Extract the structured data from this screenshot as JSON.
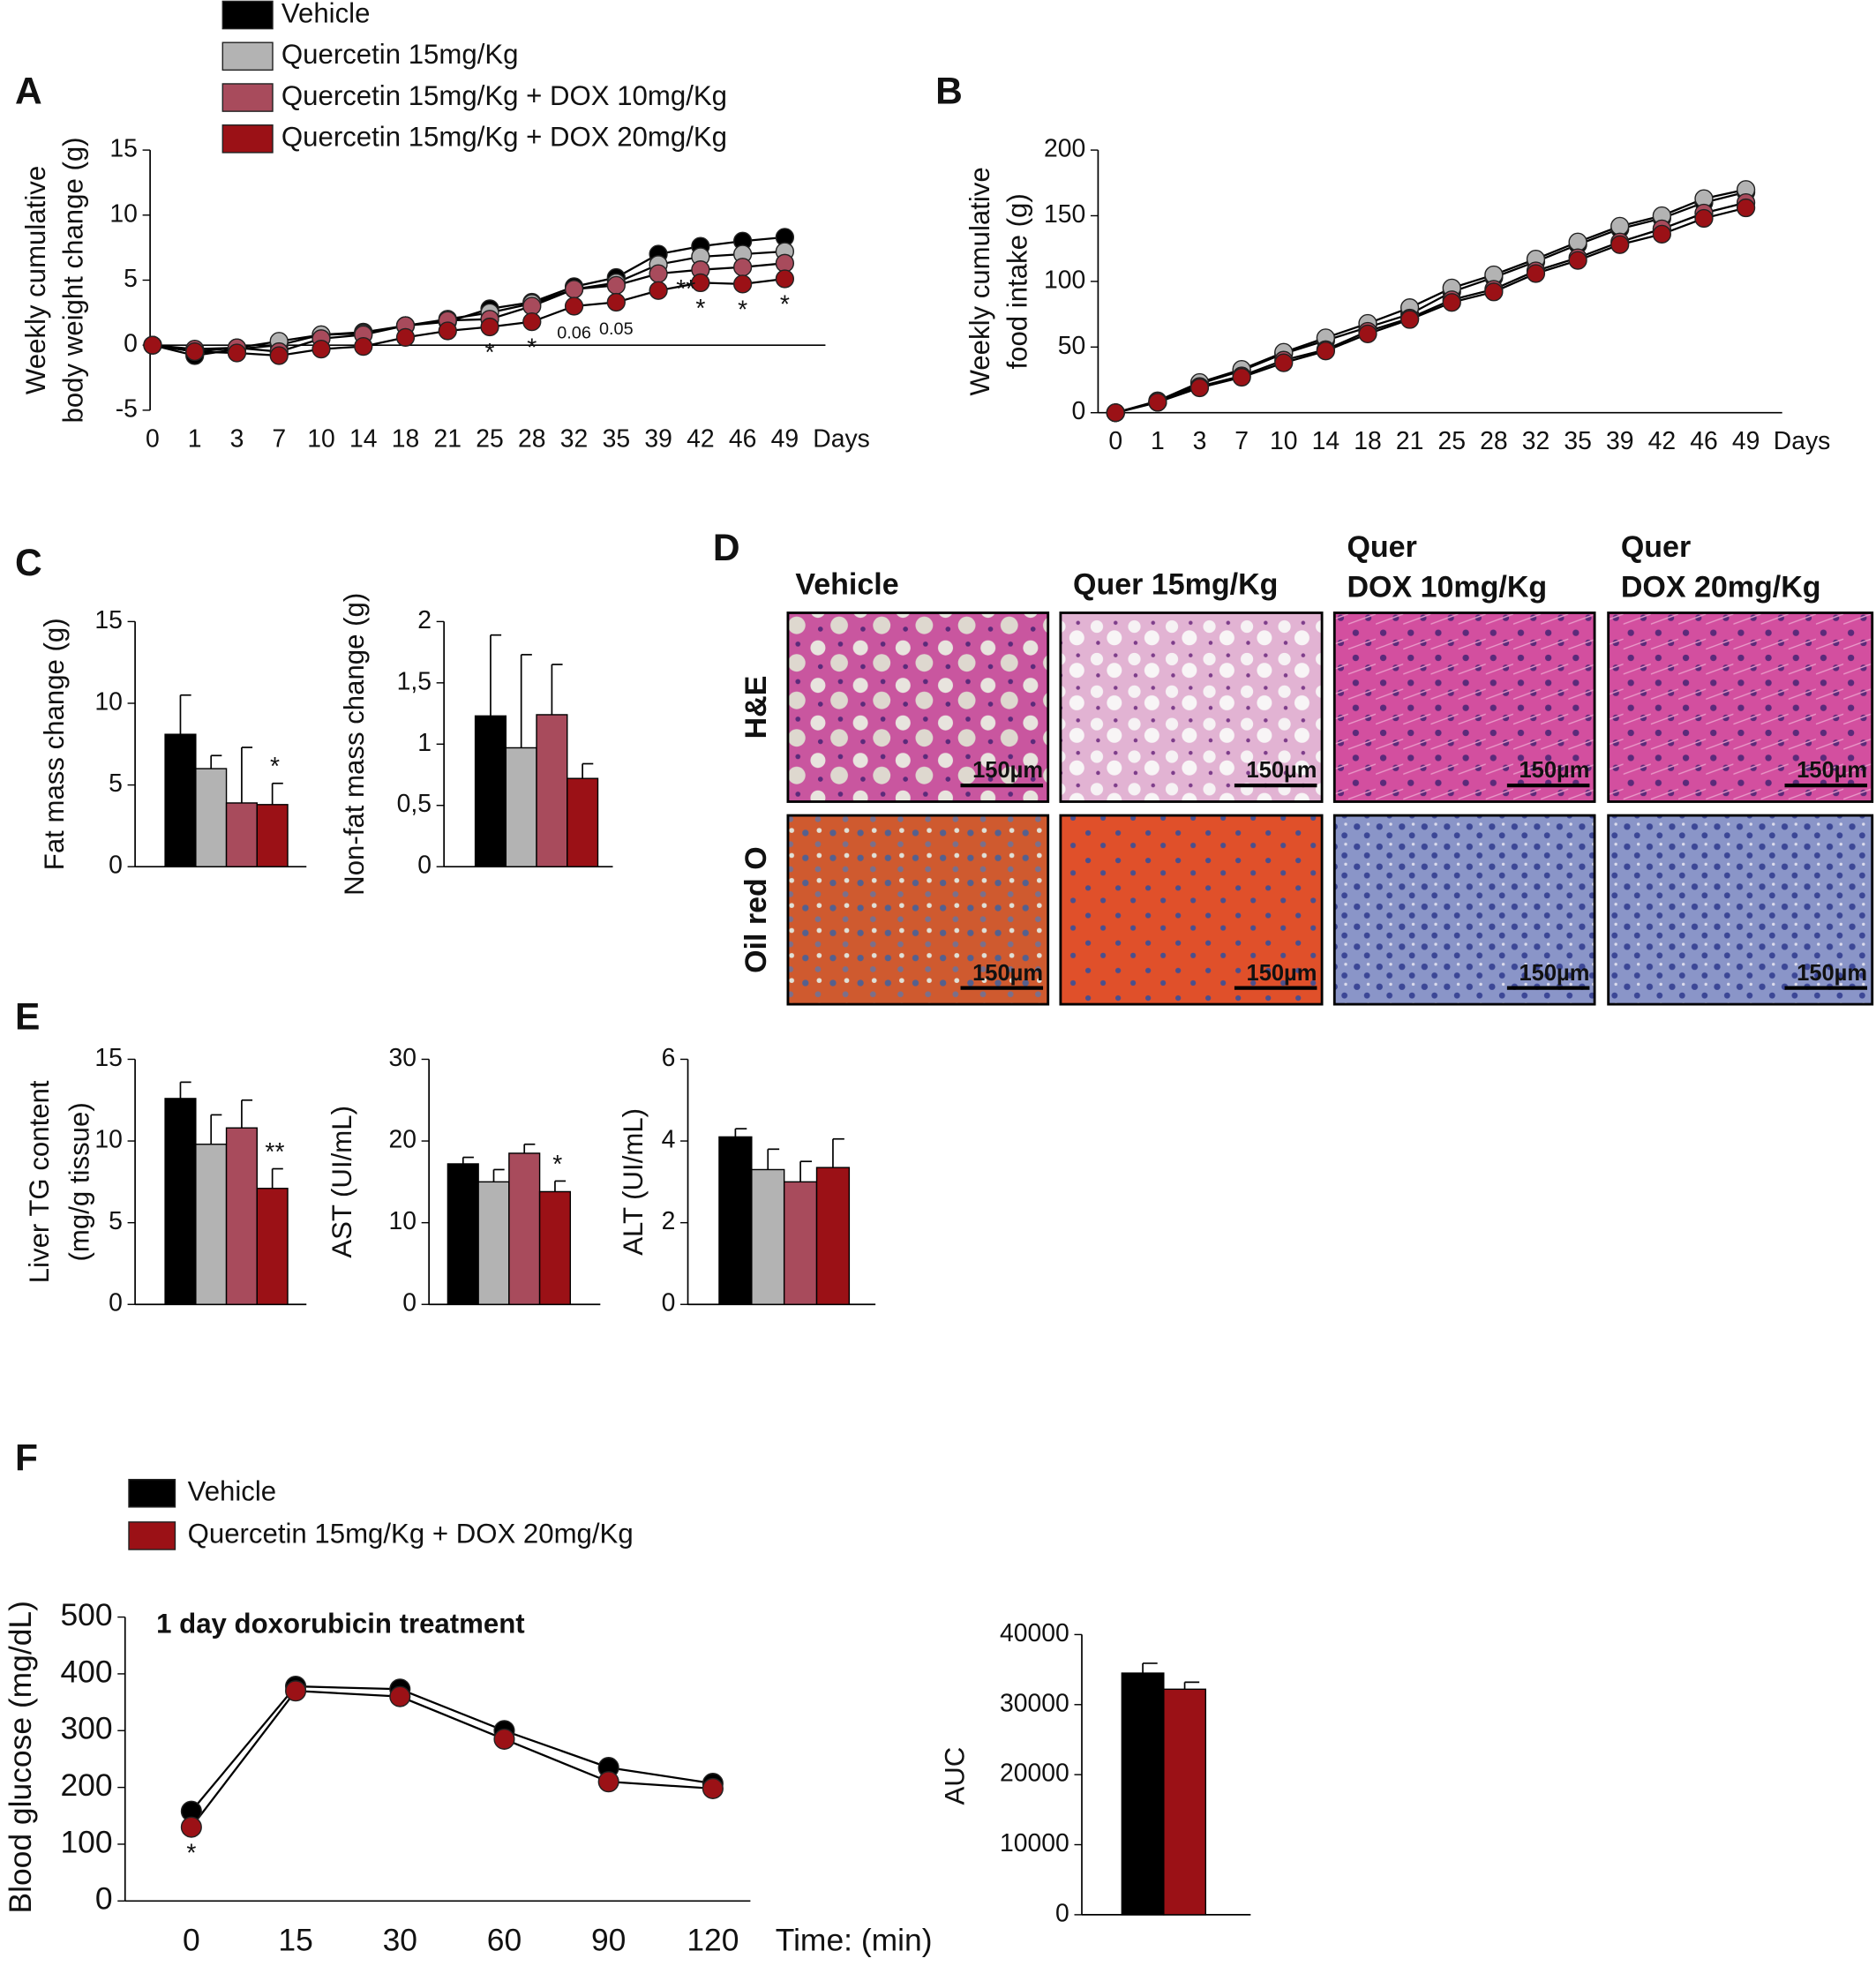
{
  "chart_data": [
    {
      "type": "line",
      "panel": "A",
      "ylabel": [
        "Weekly cumulative",
        "body weight change (g)"
      ],
      "xlabel": "Days",
      "categories": [
        "0",
        "1",
        "3",
        "7",
        "10",
        "14",
        "18",
        "21",
        "25",
        "28",
        "32",
        "35",
        "39",
        "42",
        "46",
        "49"
      ],
      "ylim": [
        -5,
        15
      ],
      "yticks": [
        -5,
        0,
        5,
        10,
        15
      ],
      "series": [
        {
          "name": "Vehicle",
          "color": "#000000",
          "values": [
            0,
            -0.8,
            -0.3,
            0,
            0.8,
            1,
            1.5,
            1.8,
            2.8,
            3.3,
            4.5,
            5.2,
            7,
            7.6,
            8,
            8.3
          ]
        },
        {
          "name": "Quercetin 15mg/Kg",
          "color": "#b3b3b3",
          "values": [
            0,
            -0.5,
            -0.2,
            0.3,
            0.8,
            0.9,
            1.5,
            2,
            2.5,
            3.2,
            4.3,
            4.8,
            6.2,
            6.8,
            7,
            7.2
          ]
        },
        {
          "name": "Quercetin 15mg/Kg + DOX 10mg/Kg",
          "color": "#a84b5c",
          "values": [
            0,
            -0.3,
            -0.2,
            -0.5,
            0.5,
            0.8,
            1.5,
            1.9,
            2,
            3,
            4.3,
            4.6,
            5.5,
            5.8,
            6,
            6.3
          ]
        },
        {
          "name": "Quercetin 15mg/Kg + DOX 20mg/Kg",
          "color": "#9b1116",
          "values": [
            0,
            -0.5,
            -0.6,
            -0.8,
            -0.3,
            -0.1,
            0.6,
            1.1,
            1.4,
            1.8,
            3,
            3.3,
            4.2,
            4.8,
            4.7,
            5.1
          ]
        }
      ],
      "annotations": [
        null,
        null,
        null,
        null,
        null,
        null,
        null,
        null,
        "*",
        "*",
        "0.06",
        "0.05",
        "**",
        "*",
        "*",
        "*"
      ]
    },
    {
      "type": "line",
      "panel": "B",
      "ylabel": [
        "Weekly cumulative",
        "food intake (g)"
      ],
      "xlabel": "Days",
      "categories": [
        "0",
        "1",
        "3",
        "7",
        "10",
        "14",
        "18",
        "21",
        "25",
        "28",
        "32",
        "35",
        "39",
        "42",
        "46",
        "49"
      ],
      "ylim": [
        0,
        200
      ],
      "yticks": [
        0,
        50,
        100,
        150,
        200
      ],
      "series": [
        {
          "name": "Vehicle",
          "color": "#000000",
          "values": [
            0,
            8,
            22,
            32,
            45,
            55,
            65,
            75,
            92,
            103,
            115,
            128,
            140,
            148,
            160,
            168
          ]
        },
        {
          "name": "Quercetin 15mg/Kg",
          "color": "#b3b3b3",
          "values": [
            0,
            9,
            23,
            33,
            46,
            57,
            68,
            80,
            95,
            105,
            117,
            130,
            142,
            150,
            163,
            170
          ]
        },
        {
          "name": "Quercetin 15mg/Kg + DOX 10mg/Kg",
          "color": "#a84b5c",
          "values": [
            0,
            8,
            20,
            28,
            40,
            48,
            62,
            72,
            86,
            94,
            108,
            118,
            130,
            140,
            152,
            160
          ]
        },
        {
          "name": "Quercetin 15mg/Kg + DOX 20mg/Kg",
          "color": "#9b1116",
          "values": [
            0,
            8,
            19,
            27,
            38,
            47,
            60,
            71,
            84,
            92,
            106,
            116,
            128,
            136,
            148,
            156
          ]
        }
      ]
    },
    {
      "type": "bar",
      "panel": "C",
      "ylabel": [
        "Fat mass change (g)"
      ],
      "ylim": [
        0,
        15
      ],
      "yticks": [
        0,
        5,
        10,
        15
      ],
      "values": [
        8.1,
        6.0,
        3.9,
        3.8
      ],
      "errors": [
        2.4,
        0.8,
        3.4,
        1.3
      ],
      "colors": [
        "#000000",
        "#b3b3b3",
        "#a84b5c",
        "#9b1116"
      ],
      "annotations": [
        null,
        null,
        null,
        "*"
      ]
    },
    {
      "type": "bar",
      "ylabel": [
        "Non-fat mass change (g)"
      ],
      "ylim": [
        0,
        2
      ],
      "yticks": [
        0,
        {
          "value": 0.5,
          "label": "0,5"
        },
        1,
        {
          "value": 1.5,
          "label": "1,5"
        },
        2
      ],
      "values": [
        1.23,
        0.97,
        1.24,
        0.72
      ],
      "errors": [
        0.66,
        0.76,
        0.41,
        0.12
      ],
      "colors": [
        "#000000",
        "#b3b3b3",
        "#a84b5c",
        "#9b1116"
      ]
    },
    {
      "type": "bar",
      "panel": "E",
      "ylabel": [
        "Liver TG content",
        "(mg/g tissue)"
      ],
      "ylim": [
        0,
        15
      ],
      "yticks": [
        0,
        5,
        10,
        15
      ],
      "values": [
        12.6,
        9.8,
        10.8,
        7.1
      ],
      "errors": [
        1.0,
        1.8,
        1.7,
        1.2
      ],
      "colors": [
        "#000000",
        "#b3b3b3",
        "#a84b5c",
        "#9b1116"
      ],
      "annotations": [
        null,
        null,
        null,
        "**"
      ]
    },
    {
      "type": "bar",
      "ylabel": [
        "AST (UI/mL)"
      ],
      "ylim": [
        0,
        30
      ],
      "yticks": [
        0,
        10,
        20,
        30
      ],
      "values": [
        17.2,
        15,
        18.5,
        13.8
      ],
      "errors": [
        0.8,
        1.5,
        1.1,
        1.3
      ],
      "colors": [
        "#000000",
        "#b3b3b3",
        "#a84b5c",
        "#9b1116"
      ],
      "annotations": [
        null,
        null,
        null,
        "*"
      ]
    },
    {
      "type": "bar",
      "ylabel": [
        "ALT (UI/mL)"
      ],
      "ylim": [
        0,
        6
      ],
      "yticks": [
        0,
        2,
        4,
        6
      ],
      "values": [
        4.1,
        3.3,
        3.0,
        3.35
      ],
      "errors": [
        0.2,
        0.5,
        0.5,
        0.7
      ],
      "colors": [
        "#000000",
        "#b3b3b3",
        "#a84b5c",
        "#9b1116"
      ]
    },
    {
      "type": "line",
      "panel": "F",
      "ylabel": [
        "Blood glucose (mg/dL)"
      ],
      "xlabel": "Time: (min)",
      "title": "1 day doxorubicin treatment",
      "title_color": "#c8102e",
      "categories": [
        "0",
        "15",
        "30",
        "60",
        "90",
        "120"
      ],
      "ylim": [
        0,
        500
      ],
      "yticks": [
        0,
        100,
        200,
        300,
        400,
        500
      ],
      "series": [
        {
          "name": "Vehicle",
          "color": "#000000",
          "values": [
            158,
            378,
            373,
            300,
            235,
            207
          ]
        },
        {
          "name": "Quercetin 15mg/Kg + DOX 20mg/Kg",
          "color": "#9b1116",
          "values": [
            130,
            370,
            360,
            285,
            210,
            198
          ]
        }
      ],
      "annotations": [
        "*",
        null,
        null,
        null,
        null,
        null
      ]
    },
    {
      "type": "bar",
      "ylabel": [
        "AUC"
      ],
      "ylim": [
        0,
        40000
      ],
      "yticks": [
        0,
        10000,
        20000,
        30000,
        40000
      ],
      "values": [
        34500,
        32200
      ],
      "errors": [
        1400,
        1000
      ],
      "colors": [
        "#000000",
        "#9b1116"
      ]
    }
  ],
  "histology": {
    "panel": "D",
    "columns": [
      [
        "Vehicle"
      ],
      [
        "Quer 15mg/Kg"
      ],
      [
        "Quer",
        "DOX 10mg/Kg"
      ],
      [
        "Quer",
        "DOX 20mg/Kg"
      ]
    ],
    "rows": [
      "H&E",
      "Oil red O"
    ],
    "scale_bar": "150µm"
  }
}
